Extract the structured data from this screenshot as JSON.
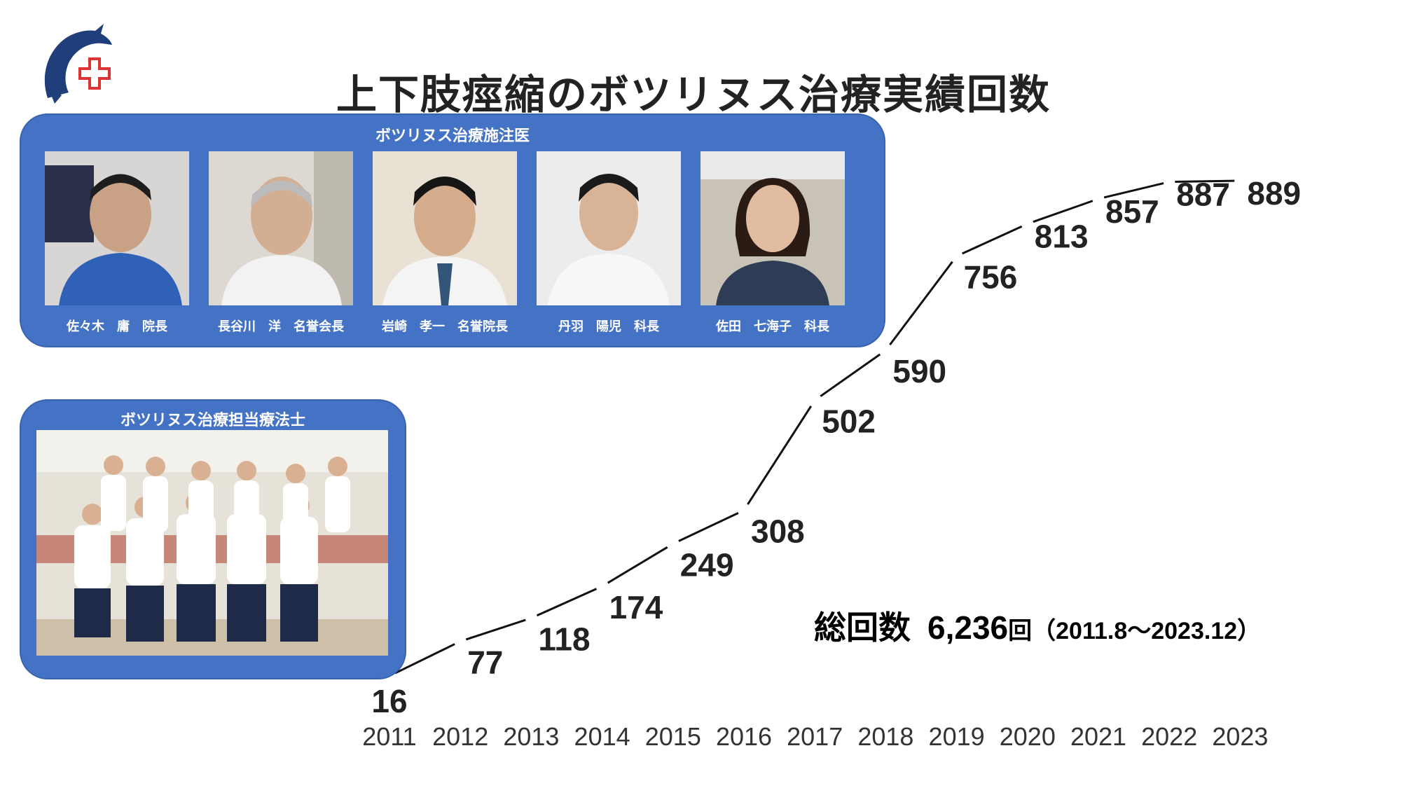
{
  "title": "上下肢痙縮のボツリヌス治療実績回数",
  "logo_icon": "dolphin-cross-logo",
  "colors": {
    "panel": "#4472c4",
    "line": "#111111"
  },
  "doctors_panel": {
    "heading": "ボツリヌス治療施注医",
    "doctors": [
      {
        "name": "佐々木　庸　院長"
      },
      {
        "name": "長谷川　洋　名誉会長"
      },
      {
        "name": "岩崎　孝一　名誉院長"
      },
      {
        "name": "丹羽　陽児　科長"
      },
      {
        "name": "佐田　七海子　科長"
      }
    ]
  },
  "therapists_panel": {
    "heading": "ボツリヌス治療担当療法士"
  },
  "total": {
    "label": "総回数",
    "value": "6,236",
    "unit": "回",
    "period": "（2011.8～2023.12）"
  },
  "chart_data": {
    "type": "line",
    "categories": [
      "2011",
      "2012",
      "2013",
      "2014",
      "2015",
      "2016",
      "2017",
      "2018",
      "2019",
      "2020",
      "2021",
      "2022",
      "2023"
    ],
    "values": [
      16,
      77,
      118,
      174,
      249,
      308,
      502,
      590,
      756,
      813,
      857,
      887,
      889
    ],
    "title": "上下肢痙縮のボツリヌス治療実績回数",
    "grid": false,
    "legend": "none"
  }
}
